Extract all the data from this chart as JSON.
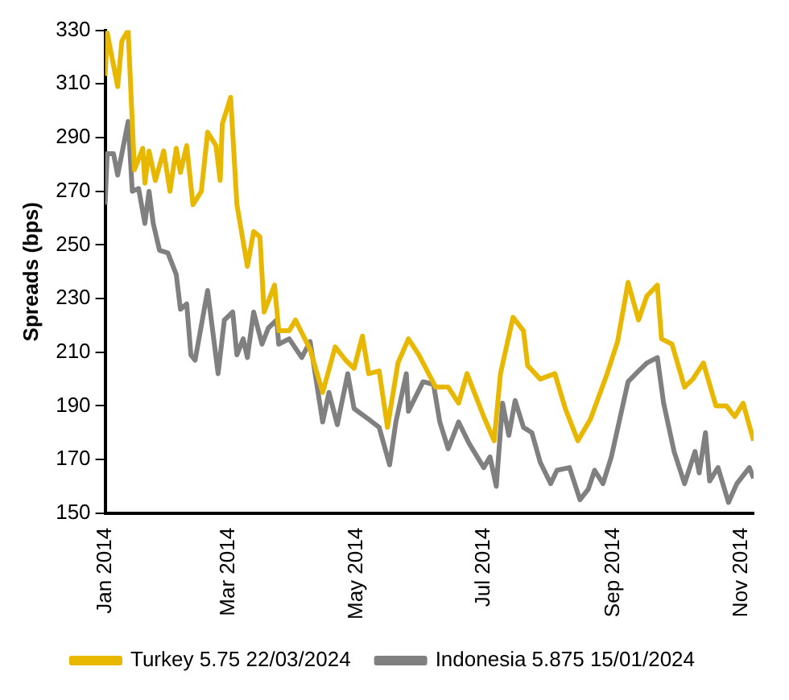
{
  "chart_data": {
    "type": "line",
    "ylabel": "Spreads (bps)",
    "xlim": [
      "2014-01-01",
      "2014-11-07"
    ],
    "xticks": [
      {
        "value": "2014-01-01",
        "label": "Jan 2014"
      },
      {
        "value": "2014-03-01",
        "label": "Mar 2014"
      },
      {
        "value": "2014-05-01",
        "label": "May 2014"
      },
      {
        "value": "2014-07-01",
        "label": "Jul 2014"
      },
      {
        "value": "2014-09-01",
        "label": "Sep 2014"
      },
      {
        "value": "2014-11-01",
        "label": "Nov 2014"
      }
    ],
    "ylim": [
      150,
      330
    ],
    "yticks": [
      150,
      170,
      190,
      210,
      230,
      250,
      270,
      290,
      310,
      330
    ],
    "grid": false,
    "legend": "bottom",
    "marker": "none",
    "line_style": "solid",
    "series": [
      {
        "name": "Turkey 5.75 22/03/2024",
        "color": "#e8b800",
        "x": [
          "2014-01-01",
          "2014-01-02",
          "2014-01-07",
          "2014-01-09",
          "2014-01-12",
          "2014-01-15",
          "2014-01-19",
          "2014-01-20",
          "2014-01-22",
          "2014-01-25",
          "2014-01-29",
          "2014-02-01",
          "2014-02-04",
          "2014-02-06",
          "2014-02-09",
          "2014-02-12",
          "2014-02-16",
          "2014-02-19",
          "2014-02-23",
          "2014-02-25",
          "2014-02-26",
          "2014-03-02",
          "2014-03-05",
          "2014-03-10",
          "2014-03-13",
          "2014-03-16",
          "2014-03-18",
          "2014-03-23",
          "2014-03-25",
          "2014-03-30",
          "2014-04-02",
          "2014-04-09",
          "2014-04-15",
          "2014-04-21",
          "2014-04-26",
          "2014-04-30",
          "2014-05-04",
          "2014-05-07",
          "2014-05-12",
          "2014-05-16",
          "2014-05-21",
          "2014-05-26",
          "2014-05-31",
          "2014-06-08",
          "2014-06-14",
          "2014-06-19",
          "2014-06-23",
          "2014-07-01",
          "2014-07-06",
          "2014-07-09",
          "2014-07-15",
          "2014-07-20",
          "2014-07-22",
          "2014-07-28",
          "2014-08-04",
          "2014-08-09",
          "2014-08-15",
          "2014-08-21",
          "2014-08-29",
          "2014-09-03",
          "2014-09-08",
          "2014-09-13",
          "2014-09-17",
          "2014-09-22",
          "2014-09-24",
          "2014-09-29",
          "2014-10-05",
          "2014-10-09",
          "2014-10-14",
          "2014-10-20",
          "2014-10-25",
          "2014-10-29",
          "2014-11-02",
          "2014-11-07"
        ],
        "values": [
          313,
          329,
          309,
          326,
          330,
          278,
          286,
          273,
          285,
          274,
          285,
          270,
          286,
          277,
          287,
          265,
          270,
          292,
          287,
          274,
          295,
          305,
          265,
          242,
          255,
          253,
          225,
          235,
          218,
          218,
          222,
          211,
          195,
          212,
          207,
          204,
          216,
          202,
          203,
          182,
          206,
          215,
          209,
          197,
          197,
          191,
          202,
          186,
          177,
          202,
          223,
          218,
          205,
          200,
          202,
          189,
          177,
          185,
          202,
          214,
          236,
          222,
          231,
          235,
          215,
          213,
          197,
          200,
          206,
          190,
          190,
          186,
          191,
          177
        ]
      },
      {
        "name": "Indonesia 5.875 15/01/2024",
        "color": "#808080",
        "x": [
          "2014-01-01",
          "2014-01-02",
          "2014-01-05",
          "2014-01-07",
          "2014-01-12",
          "2014-01-14",
          "2014-01-17",
          "2014-01-20",
          "2014-01-22",
          "2014-01-24",
          "2014-01-27",
          "2014-01-31",
          "2014-02-04",
          "2014-02-06",
          "2014-02-09",
          "2014-02-11",
          "2014-02-13",
          "2014-02-19",
          "2014-02-24",
          "2014-02-27",
          "2014-03-03",
          "2014-03-05",
          "2014-03-08",
          "2014-03-10",
          "2014-03-13",
          "2014-03-17",
          "2014-03-20",
          "2014-03-24",
          "2014-03-25",
          "2014-03-30",
          "2014-04-05",
          "2014-04-09",
          "2014-04-15",
          "2014-04-18",
          "2014-04-22",
          "2014-04-27",
          "2014-04-30",
          "2014-05-07",
          "2014-05-12",
          "2014-05-17",
          "2014-05-20",
          "2014-05-25",
          "2014-05-26",
          "2014-06-02",
          "2014-06-07",
          "2014-06-10",
          "2014-06-14",
          "2014-06-19",
          "2014-06-24",
          "2014-07-01",
          "2014-07-04",
          "2014-07-07",
          "2014-07-10",
          "2014-07-13",
          "2014-07-16",
          "2014-07-20",
          "2014-07-24",
          "2014-07-28",
          "2014-08-02",
          "2014-08-05",
          "2014-08-11",
          "2014-08-16",
          "2014-08-20",
          "2014-08-23",
          "2014-08-27",
          "2014-08-31",
          "2014-09-04",
          "2014-09-08",
          "2014-09-13",
          "2014-09-17",
          "2014-09-22",
          "2014-09-25",
          "2014-09-30",
          "2014-10-05",
          "2014-10-10",
          "2014-10-12",
          "2014-10-15",
          "2014-10-17",
          "2014-10-21",
          "2014-10-26",
          "2014-10-30",
          "2014-11-05",
          "2014-11-07"
        ],
        "values": [
          265,
          284,
          284,
          276,
          296,
          270,
          271,
          258,
          270,
          258,
          248,
          247,
          239,
          226,
          228,
          209,
          207,
          233,
          202,
          222,
          225,
          209,
          215,
          208,
          225,
          213,
          219,
          222,
          213,
          215,
          208,
          214,
          184,
          195,
          183,
          202,
          189,
          185,
          182,
          168,
          184,
          202,
          188,
          199,
          198,
          184,
          174,
          184,
          176,
          167,
          171,
          160,
          191,
          179,
          192,
          182,
          180,
          169,
          161,
          166,
          167,
          155,
          159,
          166,
          161,
          171,
          185,
          199,
          203,
          206,
          208,
          191,
          173,
          161,
          173,
          165,
          180,
          162,
          167,
          154,
          161,
          167,
          163
        ]
      }
    ]
  }
}
